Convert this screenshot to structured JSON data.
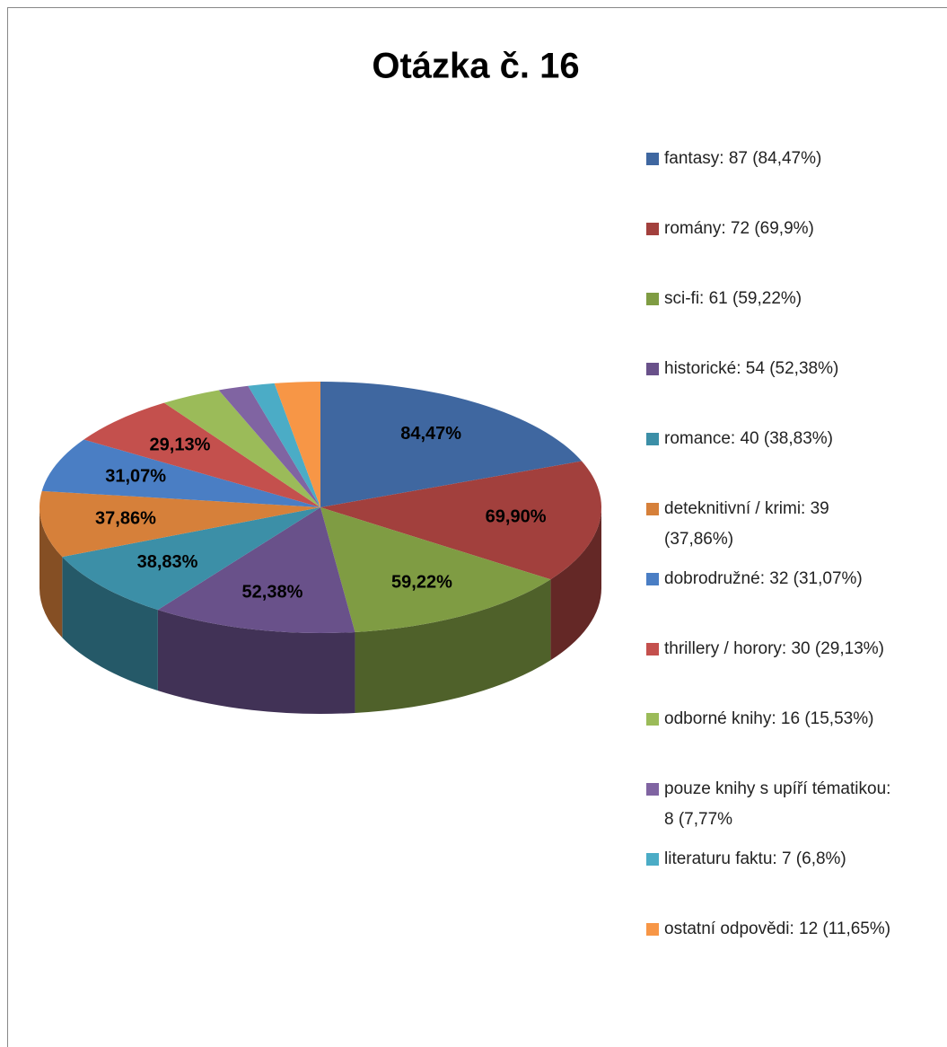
{
  "chart_data": {
    "type": "pie3d",
    "title": "Otázka č. 16",
    "categories": [
      "fantasy: 87 (84,47%)",
      "romány: 72 (69,9%)",
      "sci-fi: 61 (59,22%)",
      "historické: 54 (52,38%)",
      "romance: 40 (38,83%)",
      "deteknitivní / krimi: 39 (37,86%)",
      "dobrodružné: 32 (31,07%)",
      "thrillery / horory: 30 (29,13%)",
      "odborné knihy: 16 (15,53%)",
      "pouze knihy s upíří tématikou: 8 (7,77%",
      "literaturu faktu: 7 (6,8%)",
      "ostatní odpovědi: 12 (11,65%)"
    ],
    "values": [
      84.47,
      69.9,
      59.22,
      52.38,
      38.83,
      37.86,
      31.07,
      29.13,
      15.53,
      7.77,
      6.8,
      11.65
    ],
    "value_labels": [
      "84,47%",
      "69,90%",
      "59,22%",
      "52,38%",
      "38,83%",
      "37,86%",
      "31,07%",
      "29,13%",
      null,
      null,
      null,
      null
    ],
    "colors": [
      "#3f67a0",
      "#a2403d",
      "#7f9c43",
      "#69518a",
      "#3c8fa7",
      "#d6803a",
      "#4a7ec4",
      "#c4504d",
      "#9bbb59",
      "#8064a2",
      "#4bacc6",
      "#f79646"
    ],
    "legend": "right"
  }
}
